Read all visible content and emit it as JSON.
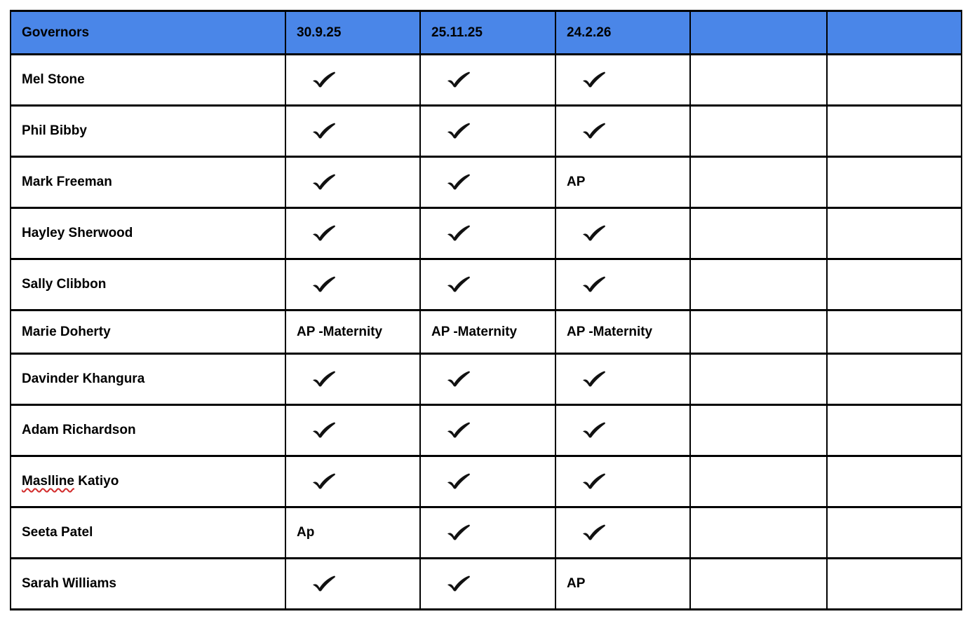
{
  "colors": {
    "header_bg": "#4a86e8",
    "border": "#000000",
    "text": "#000000",
    "spellcheck_underline": "#d22b2b"
  },
  "table": {
    "columns": [
      {
        "label": "Governors"
      },
      {
        "label": "30.9.25"
      },
      {
        "label": "25.11.25"
      },
      {
        "label": "24.2.26"
      },
      {
        "label": ""
      },
      {
        "label": ""
      }
    ],
    "check_icon": "checkmark",
    "rows": [
      {
        "name": "Mel Stone",
        "cells": [
          "check",
          "check",
          "check",
          "",
          ""
        ]
      },
      {
        "name": "Phil Bibby",
        "cells": [
          "check",
          "check",
          "check",
          "",
          ""
        ]
      },
      {
        "name": "Mark Freeman",
        "cells": [
          "check",
          "check",
          "AP",
          "",
          ""
        ]
      },
      {
        "name": "Hayley Sherwood",
        "cells": [
          "check",
          "check",
          "check",
          "",
          ""
        ]
      },
      {
        "name": "Sally Clibbon",
        "cells": [
          "check",
          "check",
          "check",
          "",
          ""
        ]
      },
      {
        "name": "Marie Doherty",
        "cells": [
          "AP -Maternity",
          "AP -Maternity",
          "AP -Maternity",
          "",
          ""
        ]
      },
      {
        "name": "Davinder Khangura",
        "cells": [
          "check",
          "check",
          "check",
          "",
          ""
        ]
      },
      {
        "name": "Adam Richardson",
        "cells": [
          "check",
          "check",
          "check",
          "",
          ""
        ]
      },
      {
        "name": "Maslline Katiyo",
        "spellcheck_error": "Maslline",
        "cells": [
          "check",
          "check",
          "check",
          "",
          ""
        ]
      },
      {
        "name": "Seeta Patel",
        "cells": [
          "Ap",
          "check",
          "check",
          "",
          ""
        ]
      },
      {
        "name": "Sarah Williams",
        "cells": [
          "check",
          "check",
          "AP",
          "",
          ""
        ]
      }
    ]
  }
}
